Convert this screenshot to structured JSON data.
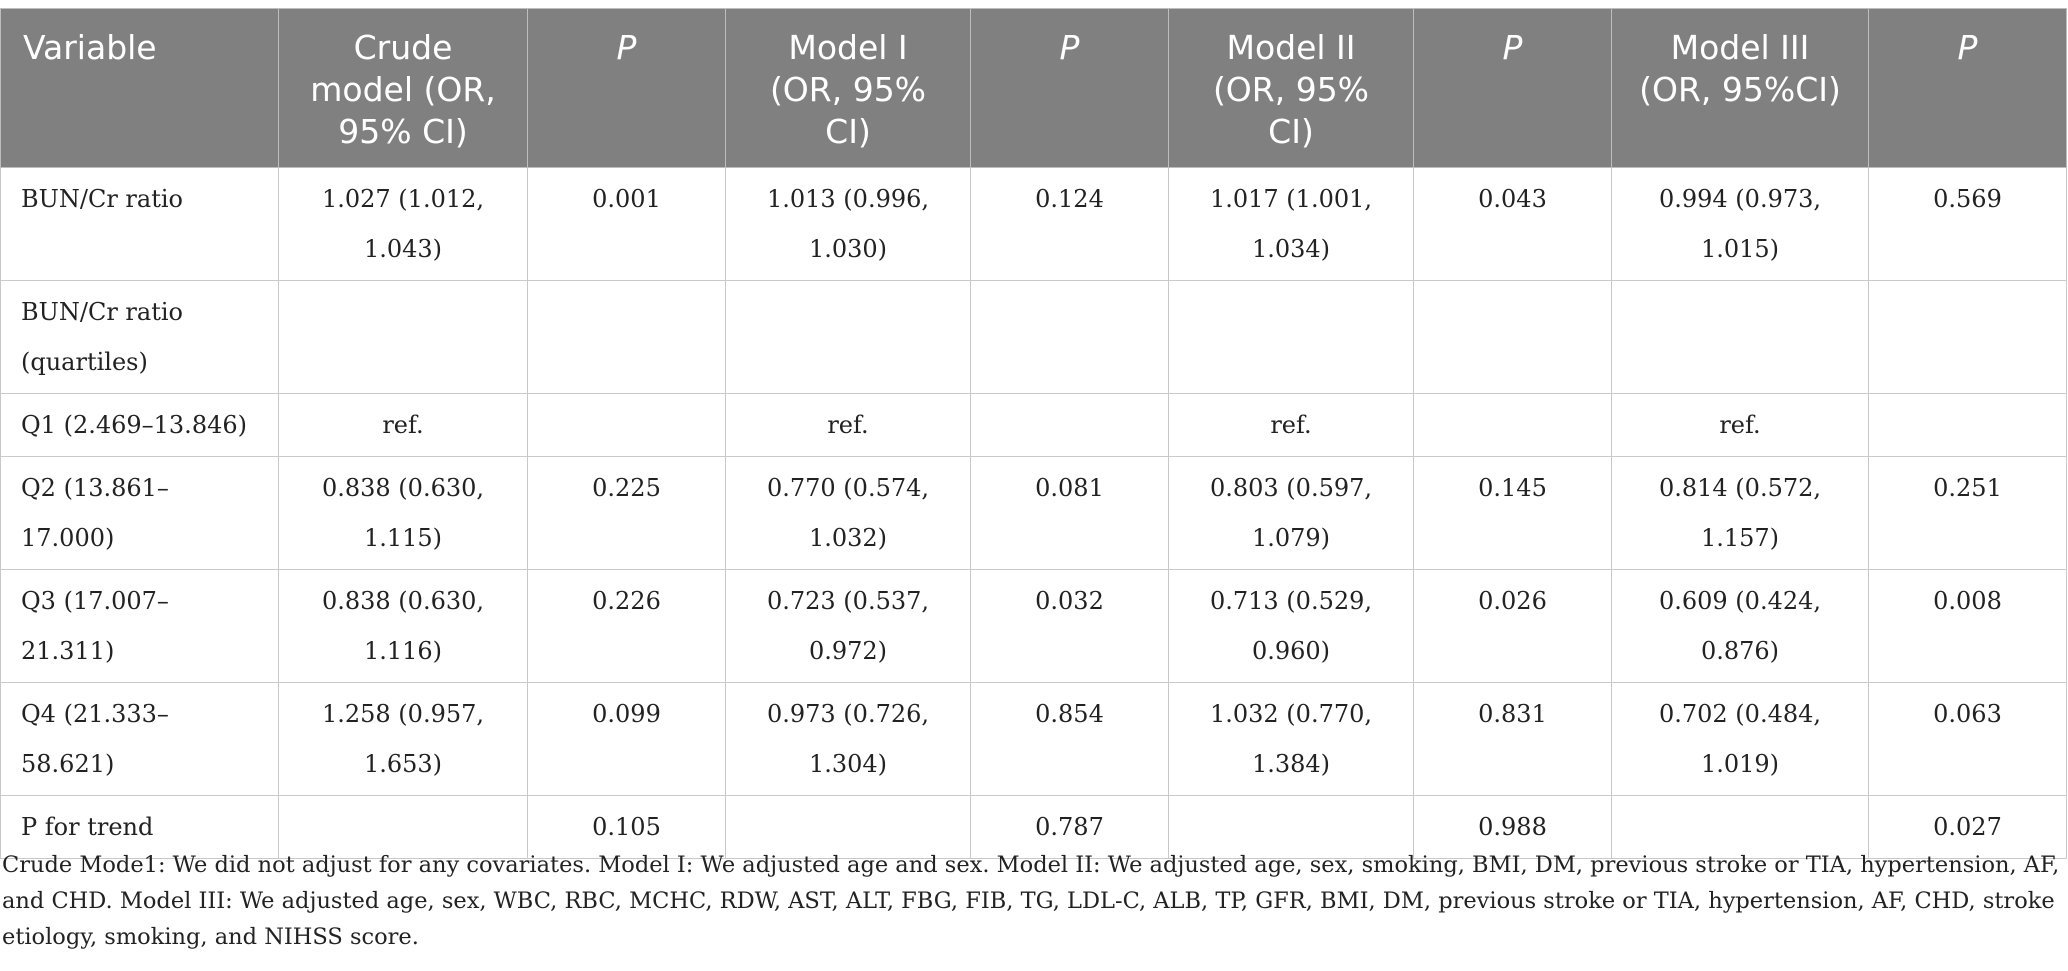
{
  "table": {
    "headers": [
      "Variable",
      "Crude model (OR, 95% CI)",
      "P",
      "Model I (OR, 95% CI)",
      "P",
      "Model II (OR, 95% CI)",
      "P",
      "Model III (OR, 95%CI)",
      "P"
    ],
    "rows": [
      [
        "BUN/Cr ratio",
        "1.027 (1.012, 1.043)",
        "0.001",
        "1.013 (0.996, 1.030)",
        "0.124",
        "1.017 (1.001, 1.034)",
        "0.043",
        "0.994 (0.973, 1.015)",
        "0.569"
      ],
      [
        "BUN/Cr ratio (quartiles)",
        "",
        "",
        "",
        "",
        "",
        "",
        "",
        ""
      ],
      [
        "Q1 (2.469–13.846)",
        "ref.",
        "",
        "ref.",
        "",
        "ref.",
        "",
        "ref.",
        ""
      ],
      [
        "Q2 (13.861–17.000)",
        "0.838 (0.630, 1.115)",
        "0.225",
        "0.770 (0.574, 1.032)",
        "0.081",
        "0.803 (0.597, 1.079)",
        "0.145",
        "0.814 (0.572, 1.157)",
        "0.251"
      ],
      [
        "Q3 (17.007–21.311)",
        "0.838 (0.630, 1.116)",
        "0.226",
        "0.723 (0.537, 0.972)",
        "0.032",
        "0.713 (0.529, 0.960)",
        "0.026",
        "0.609 (0.424, 0.876)",
        "0.008"
      ],
      [
        "Q4 (21.333–58.621)",
        "1.258 (0.957, 1.653)",
        "0.099",
        "0.973 (0.726, 1.304)",
        "0.854",
        "1.032 (0.770, 1.384)",
        "0.831",
        "0.702 (0.484, 1.019)",
        "0.063"
      ],
      [
        "P for trend",
        "",
        "0.105",
        "",
        "0.787",
        "",
        "0.988",
        "",
        "0.027"
      ]
    ]
  },
  "footnote": "Crude Mode1: We did not adjust for any covariates. Model I: We adjusted age and sex. Model II: We adjusted age, sex, smoking, BMI, DM, previous stroke or TIA, hypertension, AF, and CHD. Model III: We adjusted age, sex, WBC, RBC, MCHC, RDW, AST, ALT, FBG, FIB, TG, LDL-C, ALB, TP, GFR, BMI, DM, previous stroke or TIA, hypertension, AF, CHD, stroke etiology, smoking, and NIHSS score.",
  "colors": {
    "header_bg": "#808080",
    "header_text": "#ffffff",
    "grid": "#c9c9c9",
    "text": "#222222"
  }
}
